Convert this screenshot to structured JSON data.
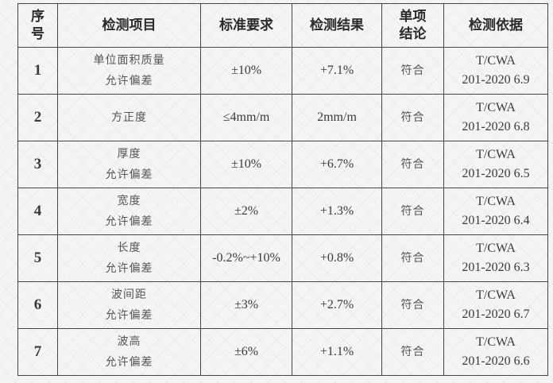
{
  "headers": [
    "序号",
    "检测项目",
    "标准要求",
    "检测结果",
    "单项结论",
    "检测依据"
  ],
  "header_lines": {
    "seq": [
      "序",
      "号"
    ],
    "conclusion": [
      "单项",
      "结论"
    ]
  },
  "rows": [
    {
      "no": "1",
      "item": [
        "单位面积质量",
        "允许偏差"
      ],
      "requirement": "±10%",
      "result": "+7.1%",
      "conclusion": "符合",
      "basis": [
        "T/CWA",
        "201-2020 6.9"
      ]
    },
    {
      "no": "2",
      "item": [
        "方正度",
        ""
      ],
      "requirement": "≤4mm/m",
      "result": "2mm/m",
      "conclusion": "符合",
      "basis": [
        "T/CWA",
        "201-2020 6.8"
      ]
    },
    {
      "no": "3",
      "item": [
        "厚度",
        "允许偏差"
      ],
      "requirement": "±10%",
      "result": "+6.7%",
      "conclusion": "符合",
      "basis": [
        "T/CWA",
        "201-2020 6.5"
      ]
    },
    {
      "no": "4",
      "item": [
        "宽度",
        "允许偏差"
      ],
      "requirement": "±2%",
      "result": "+1.3%",
      "conclusion": "符合",
      "basis": [
        "T/CWA",
        "201-2020 6.4"
      ]
    },
    {
      "no": "5",
      "item": [
        "长度",
        "允许偏差"
      ],
      "requirement": "-0.2%~+10%",
      "result": "+0.8%",
      "conclusion": "符合",
      "basis": [
        "T/CWA",
        "201-2020 6.3"
      ]
    },
    {
      "no": "6",
      "item": [
        "波间距",
        "允许偏差"
      ],
      "requirement": "±3%",
      "result": "+2.7%",
      "conclusion": "符合",
      "basis": [
        "T/CWA",
        "201-2020 6.7"
      ]
    },
    {
      "no": "7",
      "item": [
        "波高",
        "允许偏差"
      ],
      "requirement": "±6%",
      "result": "+1.1%",
      "conclusion": "符合",
      "basis": [
        "T/CWA",
        "201-2020 6.6"
      ]
    }
  ]
}
